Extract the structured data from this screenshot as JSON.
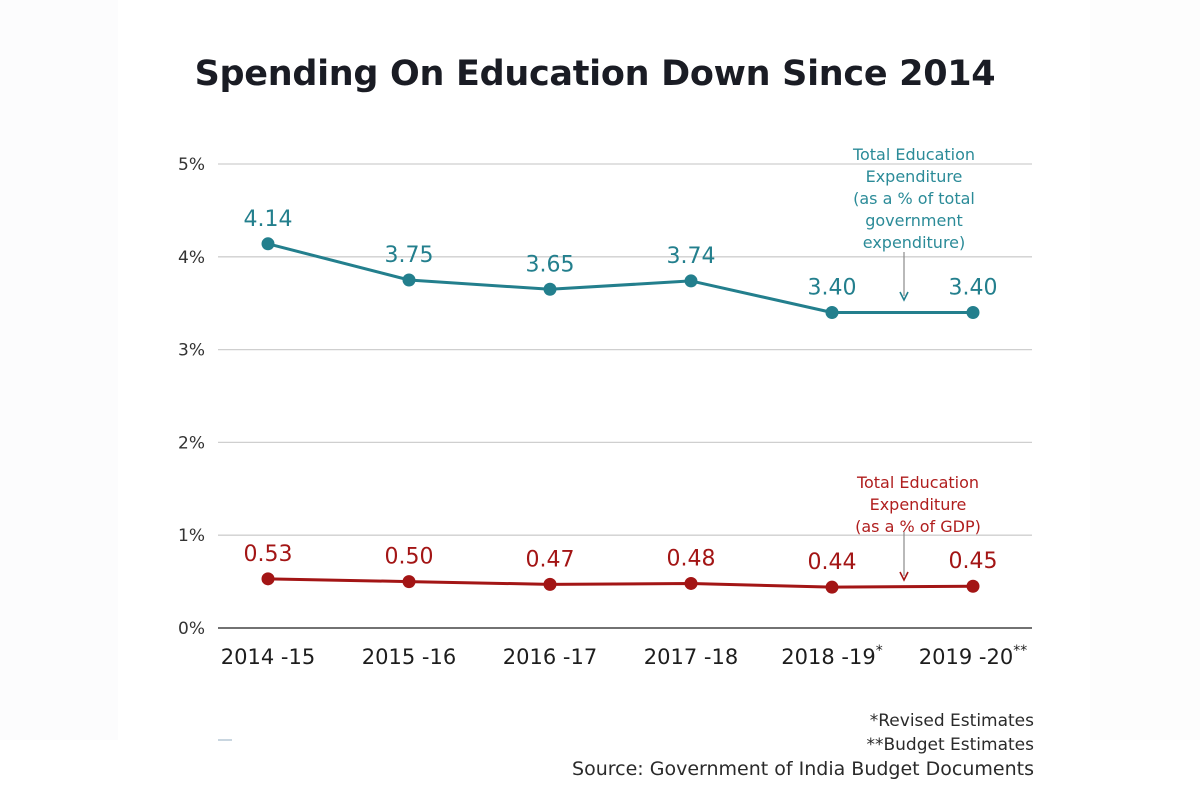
{
  "chart_data": {
    "type": "line",
    "title": "Spending On Education Down Since 2014",
    "xlabel": "",
    "ylabel": "",
    "categories": [
      "2014 -15",
      "2015 -16",
      "2016 -17",
      "2017 -18",
      "2018 -19",
      "2019 -20"
    ],
    "category_superscripts": [
      "",
      "",
      "",
      "",
      "*",
      "**"
    ],
    "ylim": [
      0,
      5
    ],
    "yticks": [
      0,
      1,
      2,
      3,
      4,
      5
    ],
    "ytick_labels": [
      "0%",
      "1%",
      "2%",
      "3%",
      "4%",
      "5%"
    ],
    "grid": true,
    "series": [
      {
        "name": "Total Education Expenditure (as a % of total government expenditure)",
        "color": "#237f8d",
        "values": [
          4.14,
          3.75,
          3.65,
          3.74,
          3.4,
          3.4
        ],
        "labels": [
          "4.14",
          "3.75",
          "3.65",
          "3.74",
          "3.40",
          "3.40"
        ],
        "annotation_lines": [
          "Total Education",
          "Expenditure",
          "(as a % of total",
          "government",
          "expenditure)"
        ]
      },
      {
        "name": "Total Education Expenditure (as a % of GDP)",
        "color": "#a31515",
        "values": [
          0.53,
          0.5,
          0.47,
          0.48,
          0.44,
          0.45
        ],
        "labels": [
          "0.53",
          "0.50",
          "0.47",
          "0.48",
          "0.44",
          "0.45"
        ],
        "annotation_lines": [
          "Total Education",
          "Expenditure",
          "(as a % of GDP)"
        ]
      }
    ]
  },
  "footer": {
    "note_revised": "*Revised Estimates",
    "note_budget": "**Budget Estimates",
    "source": "Source: Government of India Budget Documents"
  }
}
